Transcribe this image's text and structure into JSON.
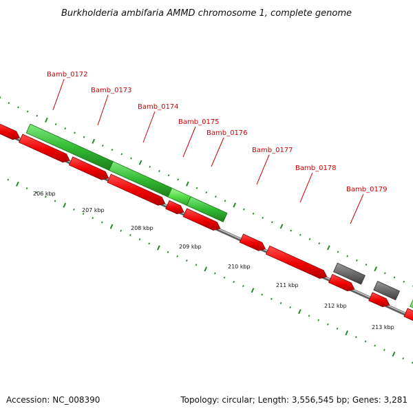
{
  "title": "Burkholderia ambifaria AMMD chromosome 1, complete genome",
  "footer": {
    "accession": "Accession: NC_008390",
    "topology": "Topology: circular; Length: 3,556,545 bp; Genes: 3,281"
  },
  "colors": {
    "forward_gene": "#33cc33",
    "reverse_gene": "#e60000",
    "other_feature": "#555555",
    "backbone": "#8a8a8a",
    "tick": "#228b22",
    "gene_label": "#cc0000"
  },
  "gene_labels": [
    "Bamb_0172",
    "Bamb_0173",
    "Bamb_0174",
    "Bamb_0175",
    "Bamb_0176",
    "Bamb_0177",
    "Bamb_0178",
    "Bamb_0179"
  ],
  "kbp_labels": [
    "206 kbp",
    "207 kbp",
    "208 kbp",
    "209 kbp",
    "210 kbp",
    "211 kbp",
    "212 kbp",
    "213 kbp"
  ]
}
